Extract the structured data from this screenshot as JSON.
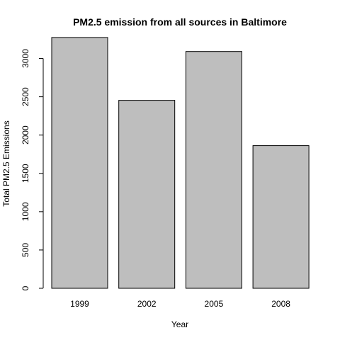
{
  "chart_data": {
    "type": "bar",
    "title": "PM2.5 emission from all sources in Baltimore",
    "xlabel": "Year",
    "ylabel": "Total PM2.5 Emissions",
    "categories": [
      "1999",
      "2002",
      "2005",
      "2008"
    ],
    "values": [
      3274,
      2454,
      3091,
      1862
    ],
    "ylim": [
      0,
      3300
    ],
    "yticks": [
      0,
      500,
      1000,
      1500,
      2000,
      2500,
      3000
    ],
    "bar_color": "#bebebe",
    "grid": false,
    "legend": "none"
  }
}
